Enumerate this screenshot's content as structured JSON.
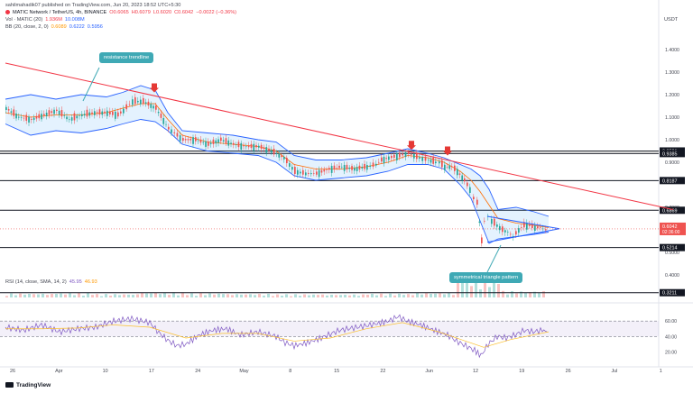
{
  "header": {
    "published_by": "sahilmahadik07 published on TradingView.com, Jun 20, 2023 18:52 UTC+5:30",
    "currency": "USDT",
    "symbol_line": {
      "name": "MATIC Network / TetherUS, 4h, BINANCE",
      "o": "O0.6065",
      "h": "H0.6079",
      "l": "L0.6020",
      "c": "C0.6042",
      "chg": "−0.0022 (−0.36%)"
    },
    "vol_line": {
      "label": "Vol · MATIC (20)",
      "v1": "1.936M",
      "v2": "10.008M"
    },
    "bb_line": {
      "label": "BB (20, close, 2, 0)",
      "v1": "0.6089",
      "v2": "0.6222",
      "v3": "0.5956"
    },
    "rsi_line": {
      "label": "RSI (14, close, SMA, 14, 2)",
      "v1": "45.95",
      "v2": "46.93"
    }
  },
  "annotations": {
    "resistance": "resistance trendline",
    "triangle": "symmetrical triangle pattern"
  },
  "footer": {
    "brand": "TradingView"
  },
  "colors": {
    "candle_up": "#26a69a",
    "candle_down": "#ef5350",
    "bb": "#2962ff",
    "bb_fill": "#2196f3",
    "basis": "#ff6d00",
    "trend": "#f23645",
    "rsi": "#7e57c2",
    "rsi_ma": "#fbc02d",
    "level": "#131722"
  },
  "chart_data": [
    {
      "type": "line",
      "title": "MATIC Network / TetherUS, 4h, BINANCE",
      "xlabel": "",
      "ylabel": "",
      "x_ticks": [
        "26",
        "Apr",
        "10",
        "17",
        "24",
        "May",
        "8",
        "15",
        "22",
        "Jun",
        "12",
        "19",
        "26",
        "Jul",
        "1"
      ],
      "y_ticks": [
        "1.4000",
        "1.3000",
        "1.2000",
        "1.1000",
        "1.0000",
        "0.9000",
        "0.7000",
        "0.5000",
        "0.4000"
      ],
      "ylim": [
        0.28,
        1.5
      ],
      "levels": [
        {
          "label": "0.9501",
          "value": 0.9501
        },
        {
          "label": "0.9385",
          "value": 0.9385
        },
        {
          "label": "0.8187",
          "value": 0.8187
        },
        {
          "label": "0.6869",
          "value": 0.6869
        },
        {
          "label": "0.5214",
          "value": 0.5214
        },
        {
          "label": "0.3211",
          "value": 0.3211
        }
      ],
      "last_price": {
        "label": "0.6042",
        "countdown": "02:36:00",
        "value": 0.6042
      },
      "series": [
        {
          "name": "price",
          "x": [
            0,
            14,
            28,
            42,
            56,
            70,
            84,
            98,
            112,
            124,
            130,
            140,
            152,
            166,
            180,
            196,
            210,
            224,
            238,
            252,
            266,
            280,
            294,
            308,
            320,
            332,
            344,
            358,
            372,
            386,
            400,
            410,
            416,
            424,
            436,
            446,
            458,
            468,
            476,
            480,
            486,
            494,
            500,
            508,
            514,
            518,
            522,
            527,
            530,
            534,
            538,
            544,
            550,
            556,
            562,
            568,
            574,
            580,
            586,
            592,
            598,
            602
          ],
          "values": [
            1.14,
            1.1,
            1.09,
            1.11,
            1.13,
            1.09,
            1.11,
            1.12,
            1.12,
            1.11,
            1.13,
            1.17,
            1.17,
            1.14,
            1.05,
            1.0,
            1.0,
            0.98,
            1.0,
            0.98,
            0.97,
            0.97,
            0.95,
            0.92,
            0.86,
            0.85,
            0.85,
            0.87,
            0.88,
            0.87,
            0.88,
            0.89,
            0.91,
            0.92,
            0.93,
            0.94,
            0.92,
            0.91,
            0.9,
            0.9,
            0.88,
            0.88,
            0.86,
            0.82,
            0.78,
            0.74,
            0.72,
            0.55,
            0.64,
            0.66,
            0.64,
            0.62,
            0.6,
            0.59,
            0.57,
            0.6,
            0.62,
            0.62,
            0.61,
            0.61,
            0.6,
            0.6
          ]
        },
        {
          "name": "BB upper",
          "x": [
            0,
            28,
            56,
            84,
            112,
            130,
            150,
            166,
            180,
            196,
            224,
            252,
            280,
            300,
            320,
            344,
            372,
            400,
            424,
            446,
            468,
            486,
            504,
            516,
            526,
            536,
            546,
            566,
            586,
            602
          ],
          "values": [
            1.18,
            1.2,
            1.18,
            1.2,
            1.19,
            1.21,
            1.24,
            1.22,
            1.12,
            1.04,
            1.03,
            1.02,
            1.0,
            0.99,
            0.93,
            0.91,
            0.91,
            0.92,
            0.94,
            0.96,
            0.94,
            0.92,
            0.89,
            0.87,
            0.84,
            0.78,
            0.69,
            0.7,
            0.68,
            0.66
          ]
        },
        {
          "name": "BB basis",
          "x": [
            0,
            28,
            56,
            84,
            112,
            130,
            150,
            166,
            180,
            196,
            224,
            252,
            280,
            300,
            320,
            344,
            372,
            400,
            424,
            446,
            468,
            486,
            504,
            516,
            526,
            536,
            546,
            566,
            586,
            602
          ],
          "values": [
            1.12,
            1.1,
            1.11,
            1.11,
            1.12,
            1.14,
            1.16,
            1.16,
            1.09,
            1.02,
            0.99,
            0.98,
            0.97,
            0.95,
            0.89,
            0.87,
            0.87,
            0.88,
            0.9,
            0.93,
            0.92,
            0.9,
            0.86,
            0.82,
            0.77,
            0.71,
            0.65,
            0.63,
            0.62,
            0.61
          ]
        },
        {
          "name": "BB lower",
          "x": [
            0,
            28,
            56,
            84,
            112,
            130,
            150,
            166,
            180,
            196,
            224,
            252,
            280,
            300,
            320,
            344,
            372,
            400,
            424,
            446,
            468,
            486,
            504,
            516,
            526,
            536,
            546,
            566,
            586,
            602
          ],
          "values": [
            1.07,
            1.02,
            1.04,
            1.03,
            1.05,
            1.07,
            1.09,
            1.08,
            1.04,
            0.98,
            0.95,
            0.94,
            0.93,
            0.9,
            0.84,
            0.82,
            0.83,
            0.84,
            0.86,
            0.89,
            0.89,
            0.87,
            0.8,
            0.74,
            0.64,
            0.54,
            0.56,
            0.57,
            0.58,
            0.59
          ]
        },
        {
          "name": "resistance trendline",
          "x": [
            0,
            740
          ],
          "values": [
            1.34,
            0.69
          ]
        }
      ]
    },
    {
      "type": "line",
      "title": "RSI (14, close, SMA, 14, 2)",
      "xlabel": "",
      "ylabel": "",
      "y_ticks": [
        "60.00",
        "40.00",
        "20.00"
      ],
      "ylim": [
        10,
        80
      ],
      "series": [
        {
          "name": "RSI",
          "x": [
            0,
            20,
            40,
            60,
            80,
            100,
            120,
            140,
            160,
            170,
            180,
            190,
            200,
            215,
            230,
            245,
            260,
            280,
            300,
            310,
            320,
            335,
            350,
            370,
            390,
            410,
            425,
            435,
            445,
            460,
            475,
            490,
            500,
            510,
            520,
            527,
            535,
            545,
            555,
            565,
            575,
            585,
            595,
            602
          ],
          "values": [
            52,
            48,
            55,
            46,
            50,
            52,
            60,
            63,
            58,
            45,
            35,
            28,
            30,
            42,
            48,
            50,
            42,
            46,
            40,
            32,
            28,
            32,
            38,
            48,
            52,
            56,
            60,
            66,
            60,
            55,
            48,
            42,
            34,
            28,
            22,
            15,
            30,
            40,
            38,
            42,
            48,
            46,
            48,
            46
          ]
        },
        {
          "name": "RSI MA",
          "x": [
            0,
            40,
            80,
            120,
            160,
            200,
            240,
            280,
            320,
            360,
            400,
            440,
            480,
            510,
            530,
            560,
            602
          ],
          "values": [
            50,
            50,
            51,
            55,
            52,
            38,
            44,
            44,
            34,
            38,
            50,
            58,
            46,
            34,
            26,
            36,
            46
          ]
        }
      ]
    },
    {
      "type": "bar",
      "title": "Vol · MATIC (20)",
      "categories": [
        "26",
        "Apr",
        "10",
        "17",
        "24",
        "May",
        "8",
        "15",
        "22",
        "Jun",
        "12",
        "19"
      ],
      "values": [
        1.9,
        2.1,
        1.6,
        2.4,
        2.0,
        1.7,
        1.5,
        1.4,
        1.8,
        2.2,
        9.5,
        3.0
      ]
    }
  ]
}
